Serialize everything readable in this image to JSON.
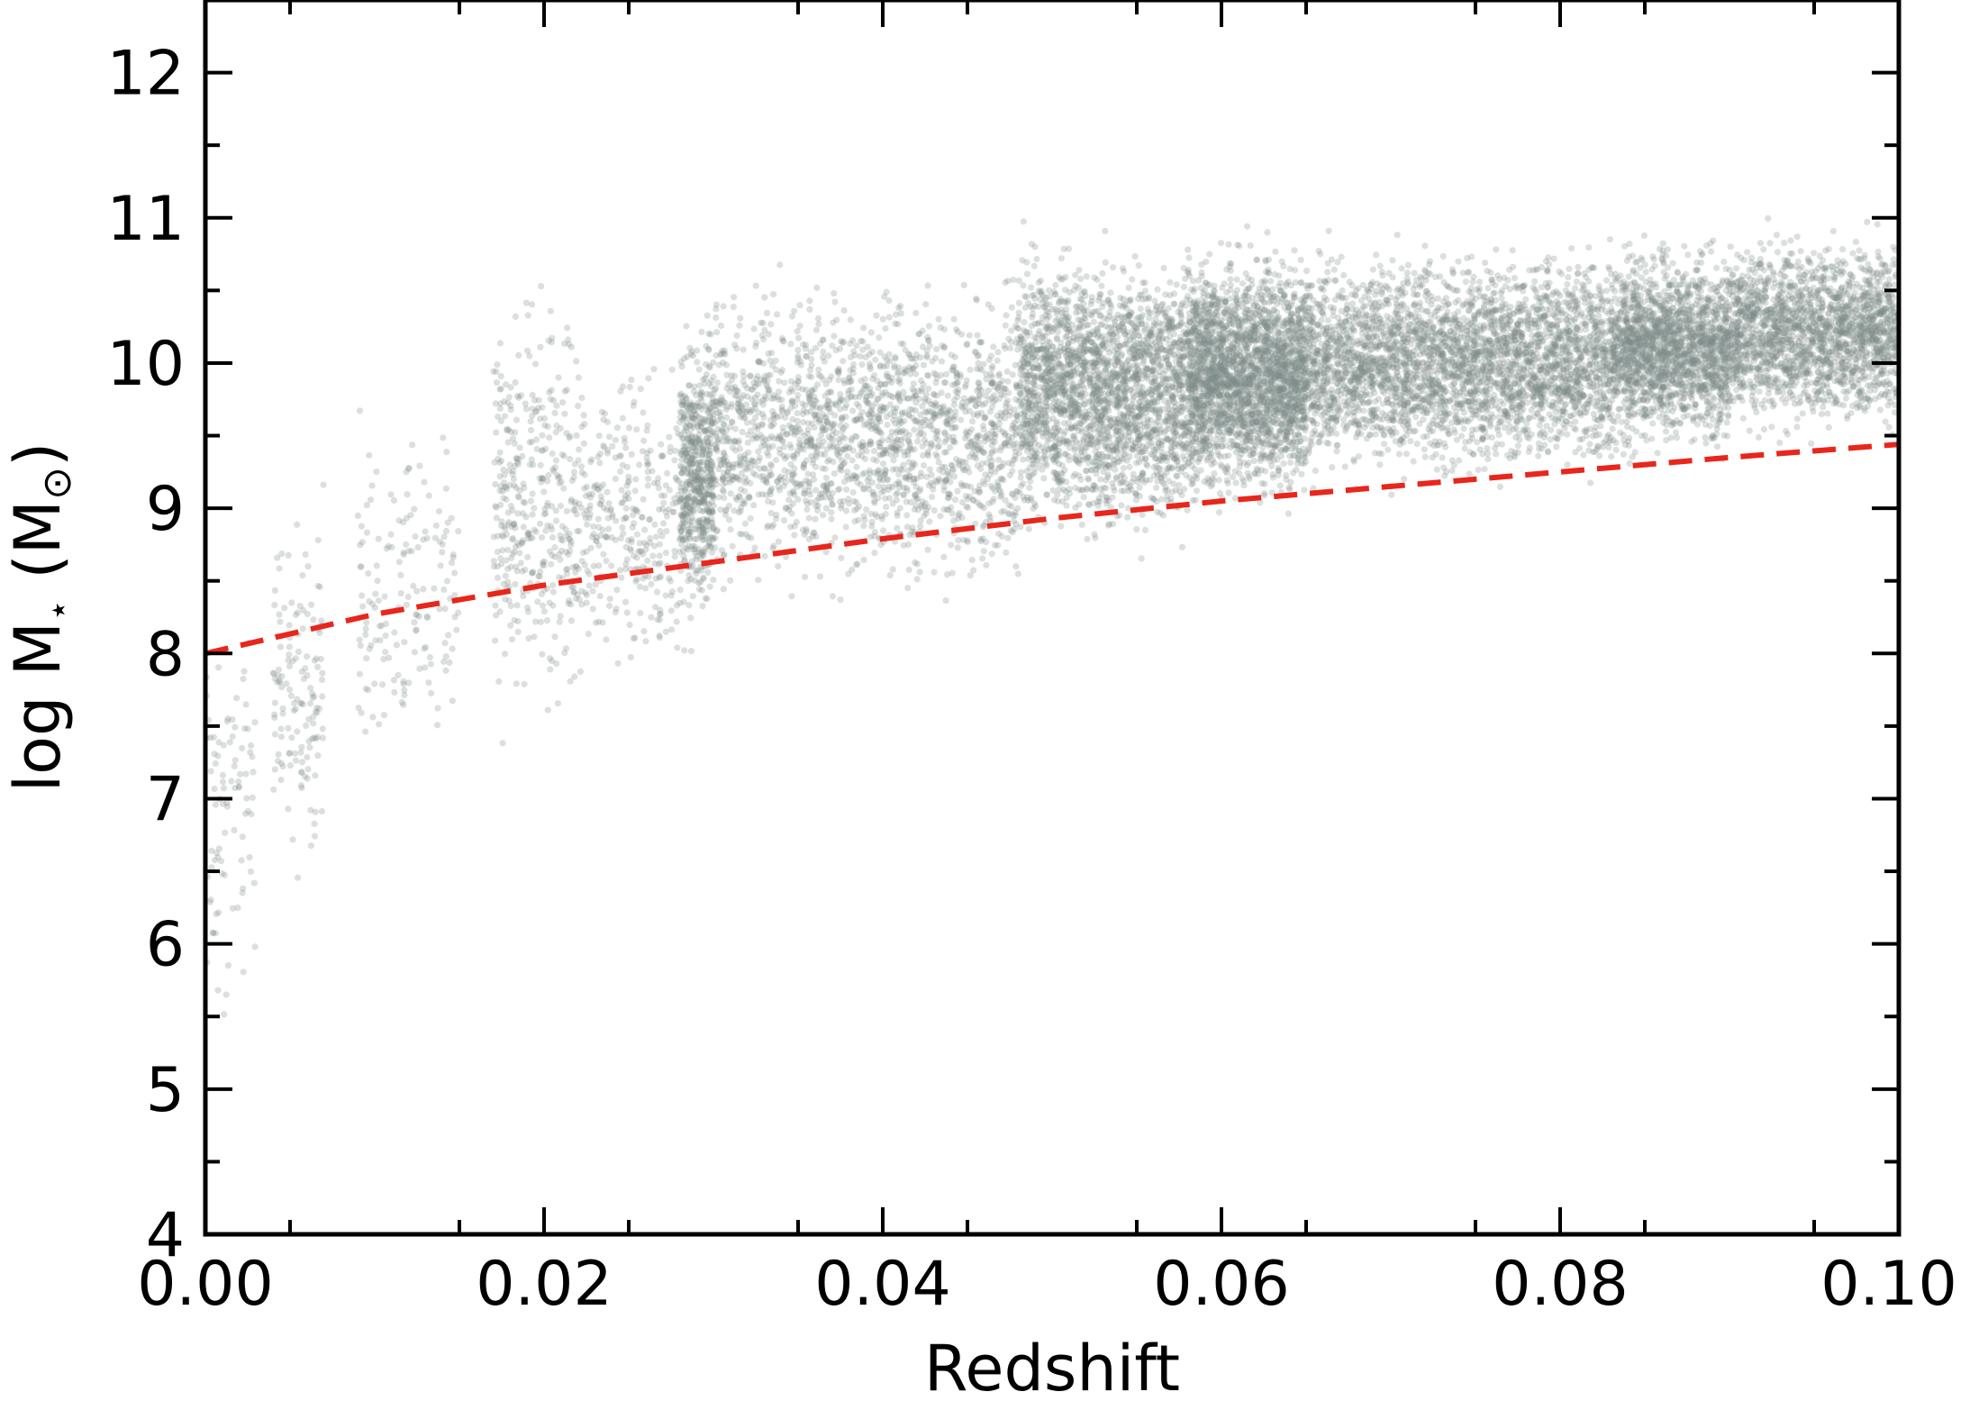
{
  "chart_data": {
    "type": "scatter",
    "title": "",
    "xlabel": "Redshift",
    "ylabel_main": "log M",
    "ylabel_sub": "⋆",
    "ylabel_unit": " (M",
    "ylabel_unit_sub": "⊙",
    "ylabel_close": ")",
    "xlim": [
      0.0,
      0.1
    ],
    "ylim": [
      4,
      12.5
    ],
    "xticks": [
      0.0,
      0.02,
      0.04,
      0.06,
      0.08,
      0.1
    ],
    "xtick_labels": [
      "0.00",
      "0.02",
      "0.04",
      "0.06",
      "0.08",
      "0.10"
    ],
    "yticks": [
      4,
      5,
      6,
      7,
      8,
      9,
      10,
      11,
      12
    ],
    "ytick_labels": [
      "4",
      "5",
      "6",
      "7",
      "8",
      "9",
      "10",
      "11",
      "12"
    ],
    "grid": false,
    "legend": "none",
    "point_color": "#7f8c8a",
    "line_color": "#e8261c",
    "scatter_clusters": [
      {
        "x_range": [
          0.0,
          0.003
        ],
        "y_center": 6.8,
        "y_spread": 1.1,
        "count": 90
      },
      {
        "x_range": [
          0.004,
          0.007
        ],
        "y_center": 7.8,
        "y_spread": 1.0,
        "count": 140
      },
      {
        "x_range": [
          0.009,
          0.015
        ],
        "y_center": 8.4,
        "y_spread": 0.9,
        "count": 160
      },
      {
        "x_range": [
          0.017,
          0.022
        ],
        "y_center": 9.0,
        "y_spread": 1.1,
        "count": 380
      },
      {
        "x_range": [
          0.022,
          0.028
        ],
        "y_center": 8.9,
        "y_spread": 0.9,
        "count": 320
      },
      {
        "x_range": [
          0.028,
          0.03
        ],
        "y_center": 9.2,
        "y_spread": 0.8,
        "count": 600
      },
      {
        "x_range": [
          0.03,
          0.048
        ],
        "y_center": 9.5,
        "y_spread": 0.8,
        "count": 1900
      },
      {
        "x_range": [
          0.048,
          0.058
        ],
        "y_center": 9.8,
        "y_spread": 0.75,
        "count": 2400
      },
      {
        "x_range": [
          0.058,
          0.065
        ],
        "y_center": 9.9,
        "y_spread": 0.65,
        "count": 2600
      },
      {
        "x_range": [
          0.065,
          0.083
        ],
        "y_center": 10.0,
        "y_spread": 0.6,
        "count": 3400
      },
      {
        "x_range": [
          0.083,
          0.09
        ],
        "y_center": 10.1,
        "y_spread": 0.55,
        "count": 1900
      },
      {
        "x_range": [
          0.09,
          0.1
        ],
        "y_center": 10.2,
        "y_spread": 0.5,
        "count": 2000
      }
    ],
    "mass_limit_curve": {
      "style": "dashed",
      "x": [
        0.0,
        0.01,
        0.02,
        0.03,
        0.04,
        0.05,
        0.06,
        0.07,
        0.08,
        0.09,
        0.1
      ],
      "y": [
        8.0,
        8.27,
        8.47,
        8.63,
        8.79,
        8.93,
        9.05,
        9.15,
        9.25,
        9.35,
        9.44
      ]
    }
  }
}
